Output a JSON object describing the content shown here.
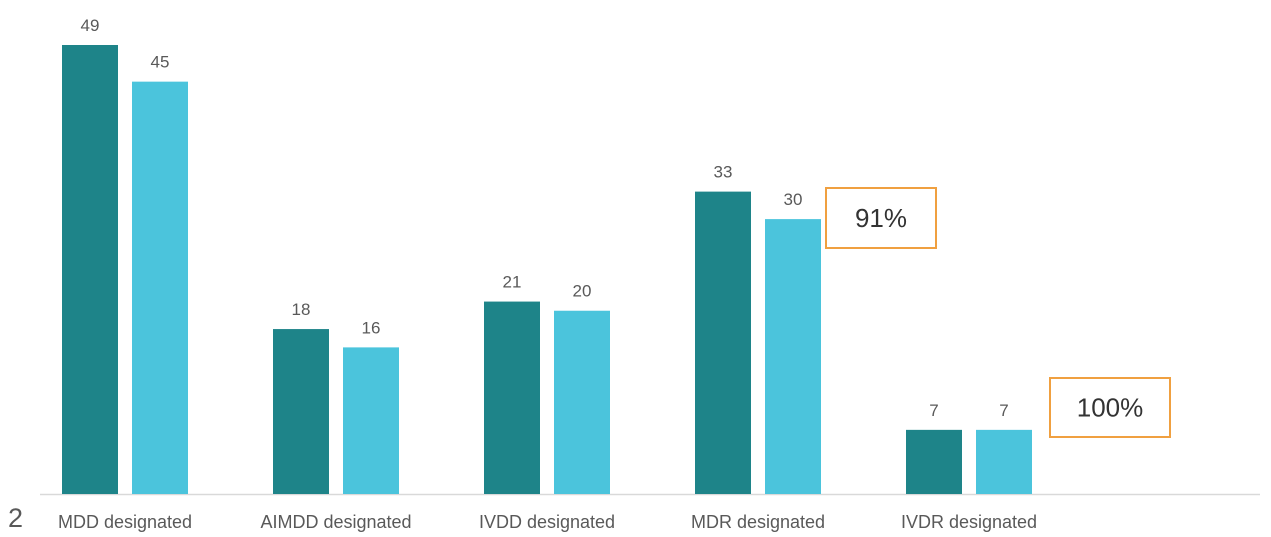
{
  "chart_data": {
    "type": "bar",
    "categories": [
      "MDD designated",
      "AIMDD designated",
      "IVDD designated",
      "MDR designated",
      "IVDR designated"
    ],
    "series": [
      {
        "color": "#1e8489",
        "values": [
          49,
          18,
          21,
          33,
          7
        ]
      },
      {
        "color": "#4bc4dc",
        "values": [
          45,
          16,
          20,
          30,
          7
        ]
      }
    ],
    "annotations": [
      "91%",
      "100%"
    ],
    "page_number": "2"
  }
}
